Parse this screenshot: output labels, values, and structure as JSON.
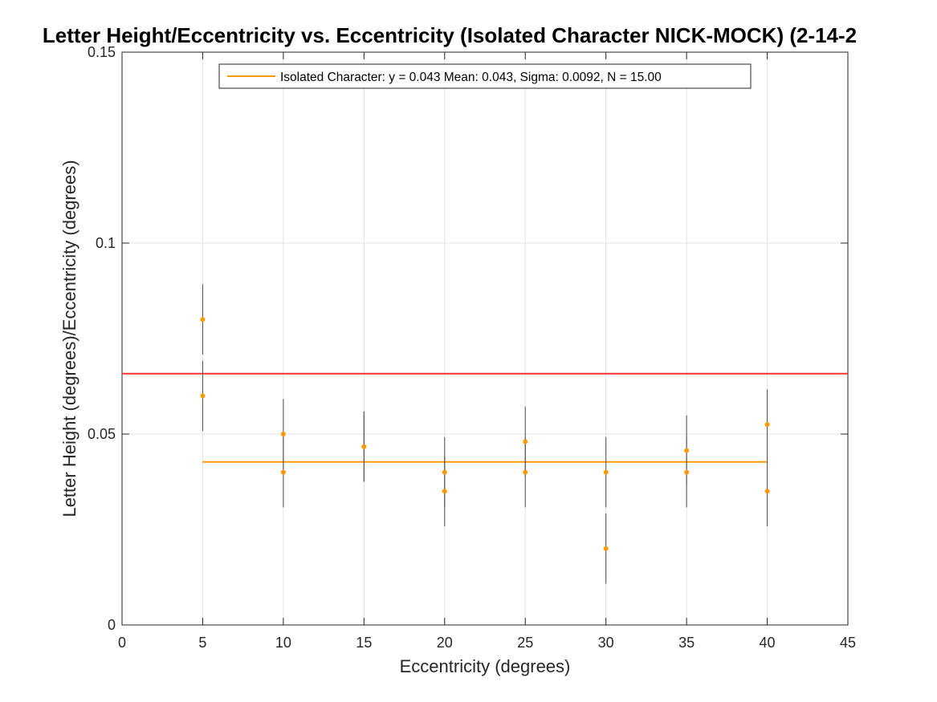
{
  "chart_data": {
    "type": "scatter",
    "title": "Letter Height/Eccentricity vs. Eccentricity (Isolated Character NICK-MOCK) (2-14-2",
    "xlabel": "Eccentricity (degrees)",
    "ylabel": "Letter Height (degrees)/Eccentricity (degrees)",
    "xlim": [
      0,
      45
    ],
    "ylim": [
      0,
      0.15
    ],
    "x_ticks": [
      0,
      5,
      10,
      15,
      20,
      25,
      30,
      35,
      40,
      45
    ],
    "x_tick_labels": [
      "0",
      "5",
      "10",
      "15",
      "20",
      "25",
      "30",
      "35",
      "40",
      "45"
    ],
    "y_ticks": [
      0,
      0.05,
      0.1,
      0.15
    ],
    "y_tick_labels": [
      "0",
      "0.05",
      "0.1",
      "0.15"
    ],
    "grid": true,
    "legend": {
      "location": "top-center",
      "entries": [
        "Isolated Character: y = 0.043 Mean: 0.043, Sigma: 0.0092, N = 15.00"
      ]
    },
    "points": {
      "color": "#ff9900",
      "x": [
        5,
        5,
        10,
        10,
        15,
        15,
        20,
        20,
        25,
        25,
        30,
        30,
        35,
        35,
        40,
        40
      ],
      "y": [
        0.08,
        0.06,
        0.05,
        0.04,
        0.0467,
        0.0467,
        0.04,
        0.035,
        0.048,
        0.04,
        0.04,
        0.02,
        0.0457,
        0.04,
        0.0525,
        0.035
      ],
      "error": [
        0.0092,
        0.0092,
        0.0092,
        0.0092,
        0.0092,
        0.0092,
        0.0092,
        0.0092,
        0.0092,
        0.0092,
        0.0092,
        0.0092,
        0.0092,
        0.0092,
        0.0092,
        0.0092
      ],
      "error_color": "#4d4d4d"
    },
    "fit_line": {
      "color": "#ff9900",
      "x": [
        5,
        40
      ],
      "y": [
        0.0427,
        0.0427
      ]
    },
    "threshold_line": {
      "color": "#ff3333",
      "y": 0.0658
    }
  }
}
